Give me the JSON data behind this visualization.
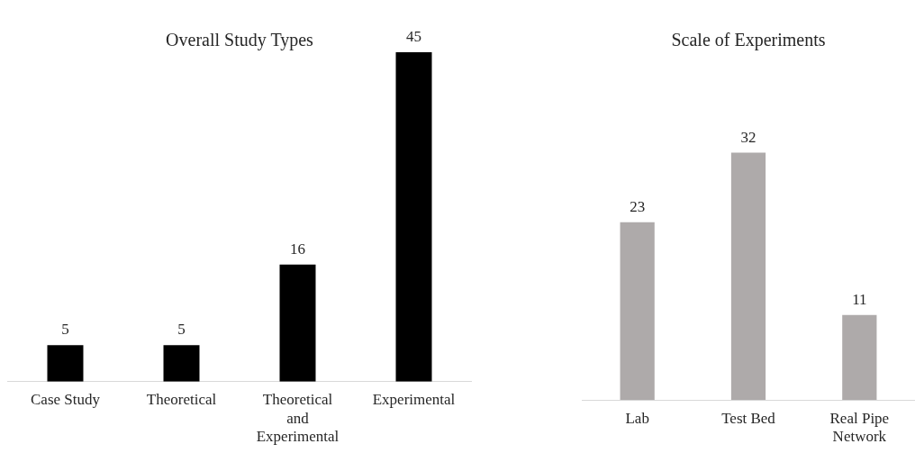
{
  "chart_data": [
    {
      "type": "bar",
      "title": "Overall Study Types",
      "categories": [
        "Case Study",
        "Theoretical",
        "Theoretical and Experimental",
        "Experimental"
      ],
      "values": [
        5,
        5,
        16,
        45
      ],
      "color": "#000000",
      "data_labels": true
    },
    {
      "type": "bar",
      "title": "Scale of Experiments",
      "categories": [
        "Lab",
        "Test Bed",
        "Real Pipe Network"
      ],
      "values": [
        23,
        32,
        11
      ],
      "color": "#aeaaaa",
      "data_labels": true
    }
  ]
}
